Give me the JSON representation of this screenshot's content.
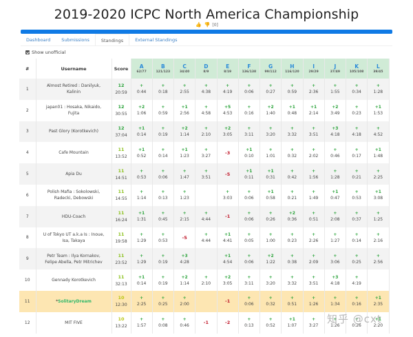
{
  "page": {
    "title": "2019-2020 ICPC North America Championship",
    "votes": {
      "like_icon": "thumbs-up-icon",
      "dislike_icon": "thumbs-down-icon",
      "count": "[0]"
    },
    "tabs": [
      {
        "label": "Dashboard",
        "active": false
      },
      {
        "label": "Submissions",
        "active": false
      },
      {
        "label": "Standings",
        "active": true
      },
      {
        "label": "External Standings",
        "active": false
      }
    ],
    "show_unofficial": {
      "label": "Show unofficial",
      "checked": true
    }
  },
  "table": {
    "headers": {
      "rank": "#",
      "username": "Username",
      "score": "Score"
    },
    "problems": [
      {
        "label": "A",
        "stat": "62/77"
      },
      {
        "label": "B",
        "stat": "121/123"
      },
      {
        "label": "C",
        "stat": "34/40"
      },
      {
        "label": "D",
        "stat": "8/9"
      },
      {
        "label": "E",
        "stat": "8/19"
      },
      {
        "label": "F",
        "stat": "136/138"
      },
      {
        "label": "G",
        "stat": "99/112"
      },
      {
        "label": "H",
        "stat": "116/120"
      },
      {
        "label": "I",
        "stat": "29/29"
      },
      {
        "label": "J",
        "stat": "37/49"
      },
      {
        "label": "K",
        "stat": "105/108"
      },
      {
        "label": "L",
        "stat": "39/45"
      }
    ],
    "rows": [
      {
        "rank": "1",
        "username": "Almost Retired : Danilyuk, Kalinin",
        "solved": "12",
        "penalty": "20:59",
        "cells": [
          [
            "+",
            "0:44"
          ],
          [
            "+",
            "0:18"
          ],
          [
            "+",
            "2:55"
          ],
          [
            "+",
            "4:38"
          ],
          [
            "+",
            "4:19"
          ],
          [
            "+",
            "0:06"
          ],
          [
            "+",
            "0:27"
          ],
          [
            "+",
            "0:59"
          ],
          [
            "+",
            "2:36"
          ],
          [
            "+",
            "1:55"
          ],
          [
            "+",
            "0:34"
          ],
          [
            "+",
            "1:28"
          ]
        ]
      },
      {
        "rank": "2",
        "username": "japan01 : Hosaka, Nikaido, Fujita",
        "solved": "12",
        "penalty": "30:55",
        "cells": [
          [
            "+2",
            "1:06"
          ],
          [
            "+",
            "0:59"
          ],
          [
            "+1",
            "2:56"
          ],
          [
            "+",
            "4:58"
          ],
          [
            "+5",
            "4:53"
          ],
          [
            "+",
            "0:16"
          ],
          [
            "+2",
            "1:40"
          ],
          [
            "+1",
            "0:48"
          ],
          [
            "+1",
            "2:14"
          ],
          [
            "+2",
            "3:49"
          ],
          [
            "+",
            "0:23"
          ],
          [
            "+1",
            "1:53"
          ]
        ]
      },
      {
        "rank": "3",
        "username": "Past Glory (Korotkevich)",
        "solved": "12",
        "penalty": "37:04",
        "cells": [
          [
            "+1",
            "0:14"
          ],
          [
            "+",
            "0:19"
          ],
          [
            "+2",
            "1:14"
          ],
          [
            "+",
            "2:10"
          ],
          [
            "+2",
            "3:05"
          ],
          [
            "+",
            "3:11"
          ],
          [
            "+",
            "3:20"
          ],
          [
            "+",
            "3:32"
          ],
          [
            "+",
            "3:51"
          ],
          [
            "+3",
            "4:18"
          ],
          [
            "+",
            "4:18"
          ],
          [
            "+",
            "4:52"
          ]
        ]
      },
      {
        "rank": "4",
        "username": "Cafe Mountain",
        "solved": "11",
        "penalty": "13:52",
        "cells": [
          [
            "+1",
            "0:52"
          ],
          [
            "+",
            "0:14"
          ],
          [
            "+1",
            "1:23"
          ],
          [
            "+",
            "3:27"
          ],
          [
            "-3",
            ""
          ],
          [
            "+1",
            "0:10"
          ],
          [
            "+",
            "1:01"
          ],
          [
            "+",
            "0:32"
          ],
          [
            "+",
            "2:02"
          ],
          [
            "+",
            "0:46"
          ],
          [
            "+",
            "0:17"
          ],
          [
            "+1",
            "1:48"
          ]
        ]
      },
      {
        "rank": "5",
        "username": "Apia Du",
        "solved": "11",
        "penalty": "14:51",
        "cells": [
          [
            "+",
            "0:53"
          ],
          [
            "+",
            "0:06"
          ],
          [
            "+",
            "1:47"
          ],
          [
            "+",
            "3:51"
          ],
          [
            "-5",
            ""
          ],
          [
            "+1",
            "0:11"
          ],
          [
            "+1",
            "0:31"
          ],
          [
            "+",
            "0:42"
          ],
          [
            "+",
            "1:56"
          ],
          [
            "+",
            "1:28"
          ],
          [
            "+",
            "0:21"
          ],
          [
            "+",
            "2:25"
          ]
        ]
      },
      {
        "rank": "6",
        "username": "Polish Mafia : Sokolowski, Radecki, Debowski",
        "solved": "11",
        "penalty": "14:55",
        "cells": [
          [
            "+",
            "1:14"
          ],
          [
            "+",
            "0:13"
          ],
          [
            "+",
            "1:23"
          ],
          [
            "",
            ""
          ],
          [
            "+",
            "3:03"
          ],
          [
            "+",
            "0:06"
          ],
          [
            "+1",
            "0:58"
          ],
          [
            "+",
            "0:21"
          ],
          [
            "+",
            "1:49"
          ],
          [
            "+1",
            "0:47"
          ],
          [
            "+",
            "0:53"
          ],
          [
            "+1",
            "3:08"
          ]
        ]
      },
      {
        "rank": "7",
        "username": "HDU-Coach",
        "solved": "11",
        "penalty": "16:24",
        "cells": [
          [
            "+1",
            "1:31"
          ],
          [
            "+",
            "0:45"
          ],
          [
            "+",
            "2:15"
          ],
          [
            "+",
            "4:44"
          ],
          [
            "-1",
            ""
          ],
          [
            "+",
            "0:06"
          ],
          [
            "+",
            "0:26"
          ],
          [
            "+2",
            "0:36"
          ],
          [
            "+",
            "0:51"
          ],
          [
            "+",
            "2:08"
          ],
          [
            "+",
            "0:37"
          ],
          [
            "+",
            "1:25"
          ]
        ]
      },
      {
        "rank": "8",
        "username": "U of Tokyo UT a.k.a Is : Inoue, Isa, Takaya",
        "solved": "11",
        "penalty": "19:58",
        "cells": [
          [
            "+",
            "1:29"
          ],
          [
            "+",
            "0:53"
          ],
          [
            "-5",
            ""
          ],
          [
            "+",
            "4:44"
          ],
          [
            "+1",
            "4:41"
          ],
          [
            "+",
            "0:05"
          ],
          [
            "+",
            "1:00"
          ],
          [
            "+",
            "0:23"
          ],
          [
            "+",
            "2:26"
          ],
          [
            "+",
            "1:27"
          ],
          [
            "+",
            "0:14"
          ],
          [
            "+",
            "2:16"
          ]
        ]
      },
      {
        "rank": "9",
        "username": "Petr Team : Ilya Kornakov, Felipe Abella, Petr Mitrichev",
        "solved": "11",
        "penalty": "23:52",
        "cells": [
          [
            "+",
            "1:29"
          ],
          [
            "+",
            "0:19"
          ],
          [
            "+3",
            "4:28"
          ],
          [
            "",
            ""
          ],
          [
            "+1",
            "4:54"
          ],
          [
            "+",
            "0:06"
          ],
          [
            "+2",
            "1:22"
          ],
          [
            "+",
            "0:38"
          ],
          [
            "+",
            "2:09"
          ],
          [
            "+",
            "3:06"
          ],
          [
            "+",
            "0:25"
          ],
          [
            "+",
            "2:56"
          ]
        ]
      },
      {
        "rank": "10",
        "username": "Gennady Korotkevich",
        "solved": "11",
        "penalty": "32:13",
        "cells": [
          [
            "+1",
            "0:14"
          ],
          [
            "+",
            "0:19"
          ],
          [
            "+2",
            "1:14"
          ],
          [
            "+",
            "2:10"
          ],
          [
            "+2",
            "3:05"
          ],
          [
            "+",
            "3:11"
          ],
          [
            "+",
            "3:20"
          ],
          [
            "+",
            "3:32"
          ],
          [
            "+",
            "3:51"
          ],
          [
            "+3",
            "4:18"
          ],
          [
            "+",
            "4:19"
          ],
          [
            "",
            ""
          ]
        ]
      },
      {
        "rank": "11",
        "username_prefix": "*",
        "username": "SolitaryDream",
        "highlight": true,
        "solved": "10",
        "penalty": "12:30",
        "cells": [
          [
            "+",
            "2:25"
          ],
          [
            "+",
            "0:25"
          ],
          [
            "+",
            "2:00"
          ],
          [
            "",
            ""
          ],
          [
            "-1",
            ""
          ],
          [
            "+",
            "0:06"
          ],
          [
            "+",
            "0:32"
          ],
          [
            "+",
            "0:51"
          ],
          [
            "+",
            "1:26"
          ],
          [
            "+",
            "1:34"
          ],
          [
            "+",
            "0:16"
          ],
          [
            "+1",
            "2:35"
          ]
        ]
      },
      {
        "rank": "12",
        "username": "MIT FIVE",
        "solved": "10",
        "penalty": "13:22",
        "cells": [
          [
            "+",
            "1:57"
          ],
          [
            "+",
            "0:08"
          ],
          [
            "+",
            "0:46"
          ],
          [
            "-1",
            ""
          ],
          [
            "-2",
            ""
          ],
          [
            "+",
            "0:13"
          ],
          [
            "+",
            "0:52"
          ],
          [
            "+1",
            "1:07"
          ],
          [
            "+",
            "3:27"
          ],
          [
            "+",
            "1:26"
          ],
          [
            "+",
            "0:26"
          ],
          [
            "+1",
            "2:20"
          ]
        ]
      }
    ]
  },
  "watermark": "知乎 @cxt",
  "colors": {
    "progress_bar": "#0f7ae5",
    "problem_header_bg": "#d0ebd6",
    "accepted": "#2aa33a",
    "rejected": "#c0182a",
    "highlight_row": "#fde6b2",
    "link": "#3b7fc4"
  }
}
